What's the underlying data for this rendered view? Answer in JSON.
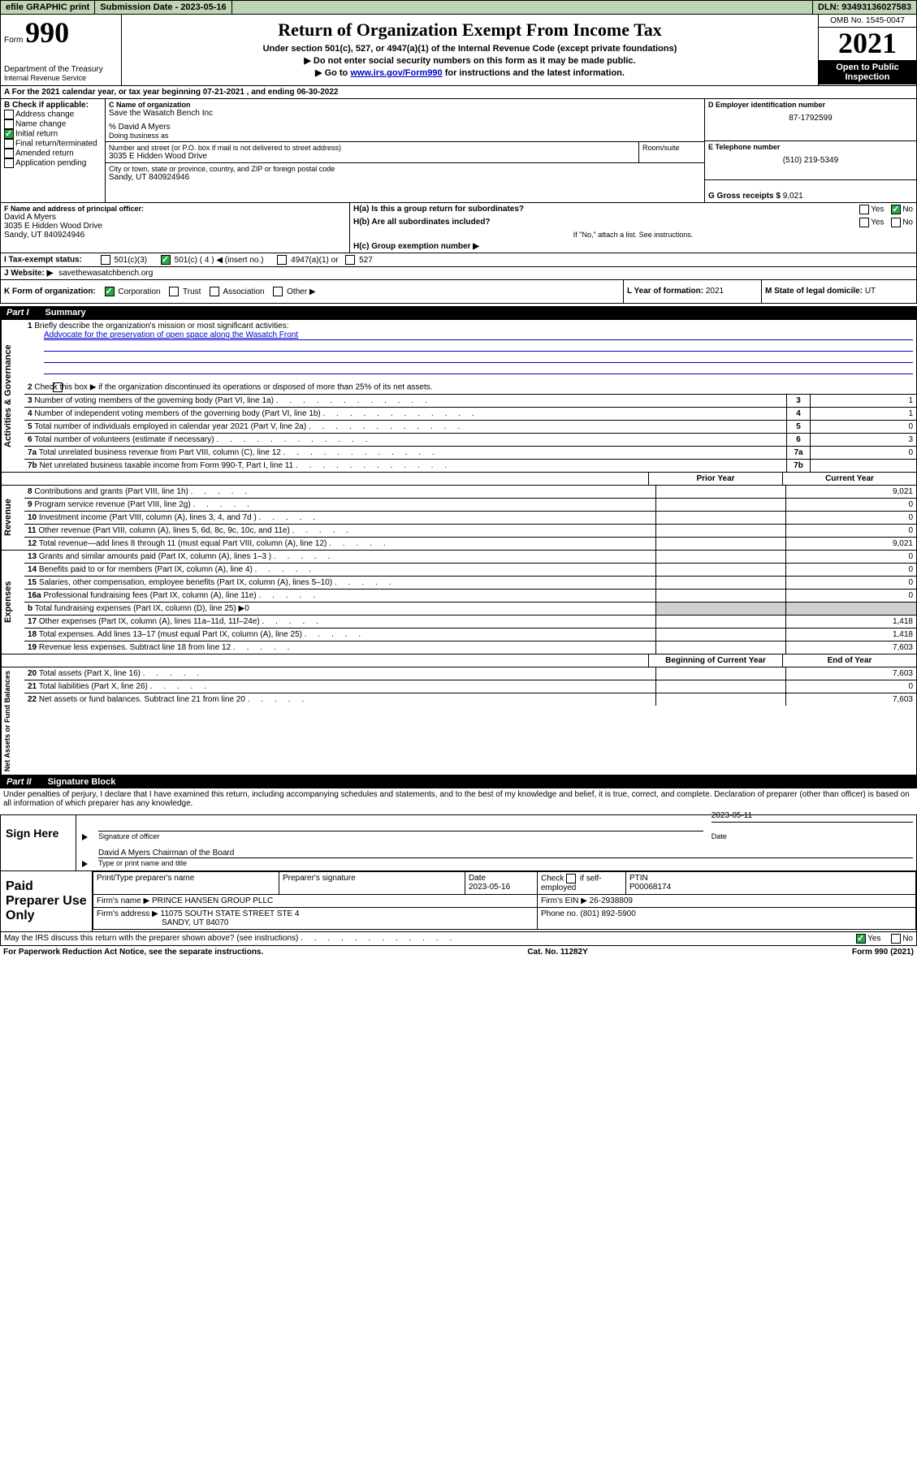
{
  "topbar": {
    "efile": "efile GRAPHIC print",
    "sub_label": "Submission Date - 2023-05-16",
    "dln": "DLN: 93493136027583"
  },
  "header": {
    "form_word": "Form",
    "num": "990",
    "dept": "Department of the Treasury",
    "irs": "Internal Revenue Service",
    "title": "Return of Organization Exempt From Income Tax",
    "sub1": "Under section 501(c), 527, or 4947(a)(1) of the Internal Revenue Code (except private foundations)",
    "sub2": "▶ Do not enter social security numbers on this form as it may be made public.",
    "sub3_pre": "▶ Go to ",
    "sub3_link": "www.irs.gov/Form990",
    "sub3_post": " for instructions and the latest information.",
    "omb": "OMB No. 1545-0047",
    "year": "2021",
    "open": "Open to Public Inspection"
  },
  "lineA": {
    "text": "For the 2021 calendar year, or tax year beginning 07-21-2021   , and ending 06-30-2022"
  },
  "boxB": {
    "label": "B Check if applicable:",
    "items": [
      "Address change",
      "Name change",
      "Initial return",
      "Final return/terminated",
      "Amended return",
      "Application pending"
    ],
    "checked_idx": 2
  },
  "boxC": {
    "label": "C Name of organization",
    "name": "Save the Wasatch Bench Inc",
    "care": "% David A Myers",
    "dba_label": "Doing business as",
    "addr_label": "Number and street (or P.O. box if mail is not delivered to street address)",
    "room_label": "Room/suite",
    "addr": "3035 E Hidden Wood Drive",
    "city_label": "City or town, state or province, country, and ZIP or foreign postal code",
    "city": "Sandy, UT  840924946"
  },
  "boxD": {
    "label": "D Employer identification number",
    "val": "87-1792599"
  },
  "boxE": {
    "label": "E Telephone number",
    "val": "(510) 219-5349"
  },
  "boxG": {
    "label": "G Gross receipts $",
    "val": "9,021"
  },
  "boxF": {
    "label": "F Name and address of principal officer:",
    "name": "David A Myers",
    "addr": "3035 E Hidden Wood Drive",
    "city": "Sandy, UT  840924946"
  },
  "boxH": {
    "a": "H(a)  Is this a group return for subordinates?",
    "b": "H(b)  Are all subordinates included?",
    "note": "If \"No,\" attach a list. See instructions.",
    "c": "H(c)  Group exemption number ▶",
    "yes": "Yes",
    "no": "No"
  },
  "lineI": {
    "label": "I    Tax-exempt status:",
    "o1": "501(c)(3)",
    "o2": "501(c) ( 4 ) ◀ (insert no.)",
    "o3": "4947(a)(1) or",
    "o4": "527"
  },
  "lineJ": {
    "label": "J    Website: ▶",
    "val": "savethewasatchbench.org"
  },
  "lineK": {
    "label": "K Form of organization:",
    "o1": "Corporation",
    "o2": "Trust",
    "o3": "Association",
    "o4": "Other ▶"
  },
  "lineL": {
    "label": "L Year of formation:",
    "val": "2021"
  },
  "lineM": {
    "label": "M State of legal domicile:",
    "val": "UT"
  },
  "part1": {
    "num": "Part I",
    "title": "Summary"
  },
  "summary": {
    "l1_label": "Briefly describe the organization's mission or most significant activities:",
    "l1_val": "Addvocate for the preservation of open space along the Wasatch Front",
    "l2": "Check this box ▶          if the organization discontinued its operations or disposed of more than 25% of its net assets.",
    "rows": [
      {
        "n": "3",
        "t": "Number of voting members of the governing body (Part VI, line 1a)",
        "v": "1"
      },
      {
        "n": "4",
        "t": "Number of independent voting members of the governing body (Part VI, line 1b)",
        "v": "1"
      },
      {
        "n": "5",
        "t": "Total number of individuals employed in calendar year 2021 (Part V, line 2a)",
        "v": "0"
      },
      {
        "n": "6",
        "t": "Total number of volunteers (estimate if necessary)",
        "v": "3"
      },
      {
        "n": "7a",
        "t": "Total unrelated business revenue from Part VIII, column (C), line 12",
        "v": "0"
      },
      {
        "n": "7b",
        "t": "Net unrelated business taxable income from Form 990-T, Part I, line 11",
        "v": ""
      }
    ],
    "col_prior": "Prior Year",
    "col_curr": "Current Year",
    "rev_rows": [
      {
        "n": "8",
        "t": "Contributions and grants (Part VIII, line 1h)",
        "p": "",
        "c": "9,021"
      },
      {
        "n": "9",
        "t": "Program service revenue (Part VIII, line 2g)",
        "p": "",
        "c": "0"
      },
      {
        "n": "10",
        "t": "Investment income (Part VIII, column (A), lines 3, 4, and 7d )",
        "p": "",
        "c": "0"
      },
      {
        "n": "11",
        "t": "Other revenue (Part VIII, column (A), lines 5, 6d, 8c, 9c, 10c, and 11e)",
        "p": "",
        "c": "0"
      },
      {
        "n": "12",
        "t": "Total revenue—add lines 8 through 11 (must equal Part VIII, column (A), line 12)",
        "p": "",
        "c": "9,021"
      }
    ],
    "exp_rows": [
      {
        "n": "13",
        "t": "Grants and similar amounts paid (Part IX, column (A), lines 1–3 )",
        "p": "",
        "c": "0"
      },
      {
        "n": "14",
        "t": "Benefits paid to or for members (Part IX, column (A), line 4)",
        "p": "",
        "c": "0"
      },
      {
        "n": "15",
        "t": "Salaries, other compensation, employee benefits (Part IX, column (A), lines 5–10)",
        "p": "",
        "c": "0"
      },
      {
        "n": "16a",
        "t": "Professional fundraising fees (Part IX, column (A), line 11e)",
        "p": "",
        "c": "0"
      },
      {
        "n": "b",
        "t": "Total fundraising expenses (Part IX, column (D), line 25) ▶0",
        "p": "shade",
        "c": "shade"
      },
      {
        "n": "17",
        "t": "Other expenses (Part IX, column (A), lines 11a–11d, 11f–24e)",
        "p": "",
        "c": "1,418"
      },
      {
        "n": "18",
        "t": "Total expenses. Add lines 13–17 (must equal Part IX, column (A), line 25)",
        "p": "",
        "c": "1,418"
      },
      {
        "n": "19",
        "t": "Revenue less expenses. Subtract line 18 from line 12",
        "p": "",
        "c": "7,603"
      }
    ],
    "col_beg": "Beginning of Current Year",
    "col_end": "End of Year",
    "na_rows": [
      {
        "n": "20",
        "t": "Total assets (Part X, line 16)",
        "p": "",
        "c": "7,603"
      },
      {
        "n": "21",
        "t": "Total liabilities (Part X, line 26)",
        "p": "",
        "c": "0"
      },
      {
        "n": "22",
        "t": "Net assets or fund balances. Subtract line 21 from line 20",
        "p": "",
        "c": "7,603"
      }
    ],
    "side_gov": "Activities & Governance",
    "side_rev": "Revenue",
    "side_exp": "Expenses",
    "side_na": "Net Assets or Fund Balances"
  },
  "part2": {
    "num": "Part II",
    "title": "Signature Block"
  },
  "sig": {
    "perjury": "Under penalties of perjury, I declare that I have examined this return, including accompanying schedules and statements, and to the best of my knowledge and belief, it is true, correct, and complete. Declaration of preparer (other than officer) is based on all information of which preparer has any knowledge.",
    "sign_here": "Sign Here",
    "date": "2023-05-11",
    "sig_officer": "Signature of officer",
    "name_title": "David A Myers  Chairman of the Board",
    "type_name": "Type or print name and title",
    "date_label": "Date"
  },
  "paid": {
    "label": "Paid Preparer Use Only",
    "h1": "Print/Type preparer's name",
    "h2": "Preparer's signature",
    "h3": "Date",
    "h3v": "2023-05-16",
    "h4a": "Check",
    "h4b": "if self-employed",
    "h5": "PTIN",
    "h5v": "P00068174",
    "firm_name_l": "Firm's name    ▶",
    "firm_name": "PRINCE HANSEN GROUP PLLC",
    "firm_ein_l": "Firm's EIN ▶",
    "firm_ein": "26-2938809",
    "firm_addr_l": "Firm's address ▶",
    "firm_addr": "11075 SOUTH STATE STREET STE 4",
    "firm_city": "SANDY, UT  84070",
    "phone_l": "Phone no.",
    "phone": "(801) 892-5900"
  },
  "discuss": {
    "text": "May the IRS discuss this return with the preparer shown above? (see instructions)",
    "yes": "Yes",
    "no": "No"
  },
  "footer": {
    "left": "For Paperwork Reduction Act Notice, see the separate instructions.",
    "mid": "Cat. No. 11282Y",
    "right": "Form 990 (2021)"
  }
}
